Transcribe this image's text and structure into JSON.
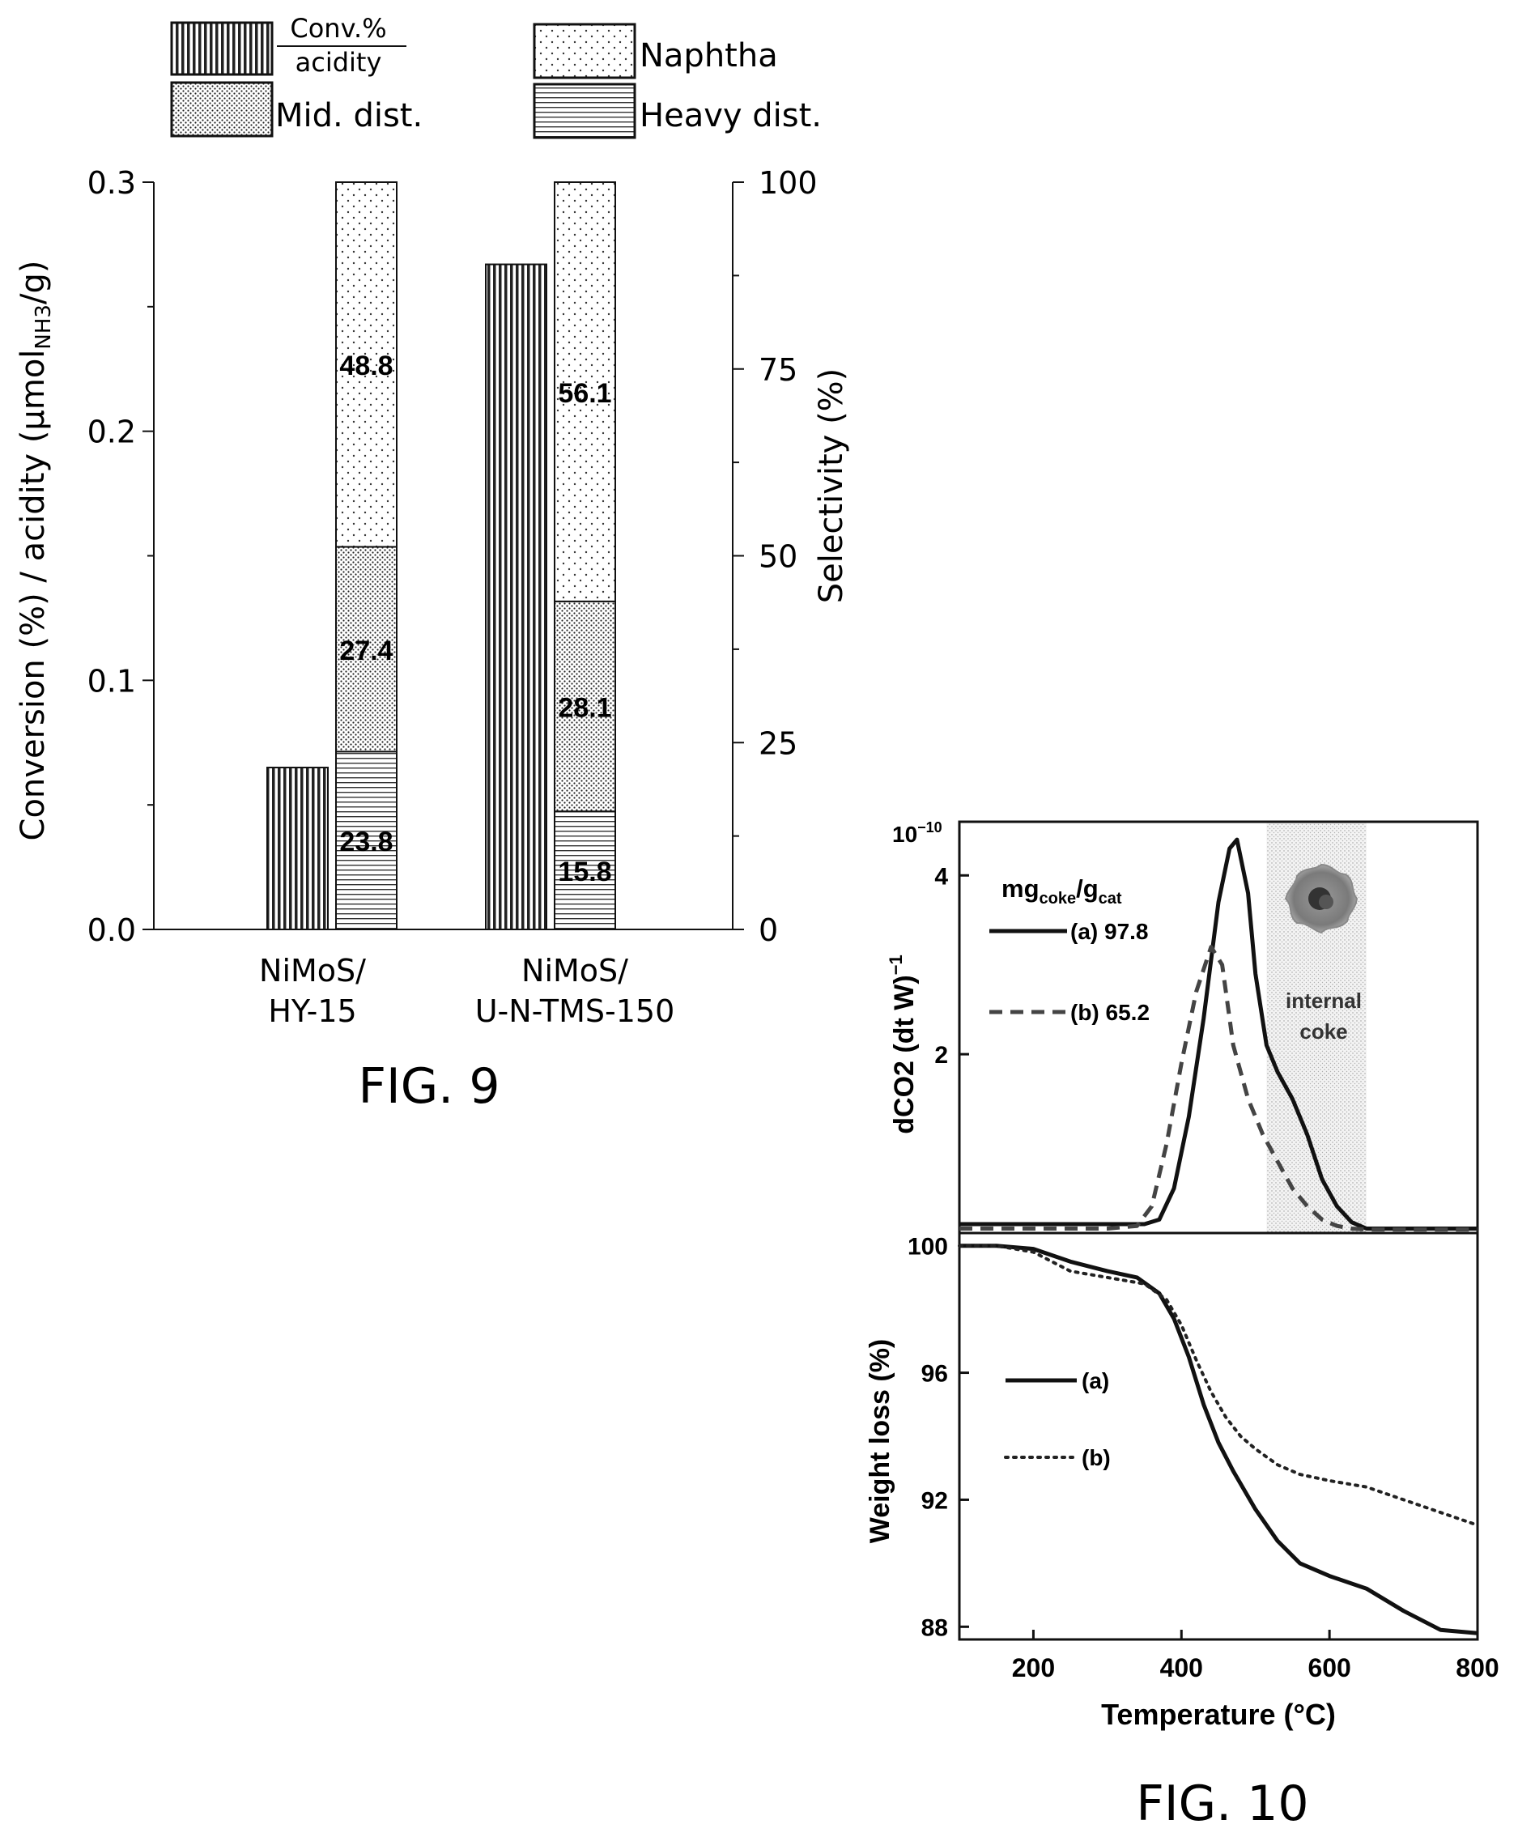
{
  "chart_data": [
    {
      "type": "bar",
      "caption": "FIG. 9",
      "legend": {
        "conv_top": "Conv.%",
        "conv_bottom": "acidity",
        "naphtha": "Naphtha",
        "mid": "Mid. dist.",
        "heavy": "Heavy dist."
      },
      "ylabel_left": "Conversion (%) / acidity (μmol",
      "ylabel_left_sub": "NH3",
      "ylabel_left_end": "/g)",
      "ylabel_right": "Selectivity (%)",
      "ylim_left": [
        0,
        0.3
      ],
      "yticks_left": [
        "0.0",
        "0.1",
        "0.2",
        "0.3"
      ],
      "ylim_right": [
        0,
        100
      ],
      "yticks_right": [
        "0",
        "25",
        "50",
        "75",
        "100"
      ],
      "categories": [
        {
          "line1": "NiMoS/",
          "line2": "HY-15"
        },
        {
          "line1": "NiMoS/",
          "line2": "U-N-TMS-150"
        }
      ],
      "conversion_per_acidity": [
        0.065,
        0.267
      ],
      "selectivity": {
        "heavy": [
          23.8,
          15.8
        ],
        "mid": [
          27.4,
          28.1
        ],
        "naphtha": [
          48.8,
          56.1
        ]
      },
      "labels": {
        "heavy": [
          "23.8",
          "15.8"
        ],
        "mid": [
          "27.4",
          "28.1"
        ],
        "naphtha": [
          "48.8",
          "56.1"
        ]
      }
    },
    {
      "type": "line",
      "caption": "FIG. 10",
      "top_panel": {
        "ylabel": "dCO2 (dt W)",
        "ylabel_sup": "−1",
        "scale_label": "10",
        "scale_exp": "−10",
        "yticks": [
          "2",
          "4"
        ],
        "ylim": [
          0,
          4.6
        ],
        "legend_title": "mg",
        "legend_title_sub1": "coke",
        "legend_title_mid": "/g",
        "legend_title_sub2": "cat",
        "annotation": [
          "internal",
          "coke"
        ],
        "shade_range": [
          515,
          650
        ],
        "series": [
          {
            "name": "(a) 97.8",
            "style": "solid",
            "x": [
              100,
              200,
              300,
              350,
              370,
              390,
              410,
              430,
              450,
              465,
              475,
              490,
              500,
              515,
              530,
              550,
              570,
              590,
              610,
              630,
              650,
              700,
              800
            ],
            "y": [
              0.1,
              0.1,
              0.1,
              0.1,
              0.15,
              0.5,
              1.3,
              2.4,
              3.7,
              4.3,
              4.4,
              3.8,
              2.9,
              2.1,
              1.8,
              1.5,
              1.1,
              0.6,
              0.3,
              0.12,
              0.05,
              0.05,
              0.05
            ]
          },
          {
            "name": "(b) 65.2",
            "style": "dashed",
            "x": [
              100,
              200,
              300,
              340,
              360,
              380,
              400,
              420,
              440,
              455,
              470,
              490,
              510,
              530,
              550,
              570,
              590,
              610,
              630,
              650,
              700,
              800
            ],
            "y": [
              0.05,
              0.05,
              0.05,
              0.08,
              0.3,
              1.0,
              1.9,
              2.7,
              3.2,
              3.0,
              2.1,
              1.5,
              1.1,
              0.8,
              0.5,
              0.3,
              0.15,
              0.08,
              0.05,
              0.04,
              0.04,
              0.04
            ]
          }
        ]
      },
      "bottom_panel": {
        "ylabel": "Weight loss (%)",
        "yticks": [
          "88",
          "92",
          "96",
          "100"
        ],
        "ylim": [
          87.6,
          100.4
        ],
        "series": [
          {
            "name": "(a)",
            "style": "solid",
            "x": [
              100,
              150,
              200,
              250,
              300,
              340,
              370,
              390,
              410,
              430,
              450,
              470,
              500,
              530,
              560,
              600,
              650,
              700,
              750,
              800
            ],
            "y": [
              100,
              100,
              99.9,
              99.5,
              99.2,
              99.0,
              98.5,
              97.7,
              96.5,
              95.0,
              93.8,
              92.9,
              91.7,
              90.7,
              90.0,
              89.6,
              89.2,
              88.5,
              87.9,
              87.8
            ]
          },
          {
            "name": "(b)",
            "style": "dotted",
            "x": [
              100,
              150,
              200,
              250,
              300,
              350,
              380,
              400,
              420,
              440,
              460,
              480,
              500,
              530,
              560,
              600,
              650,
              700,
              750,
              800
            ],
            "y": [
              100,
              100,
              99.8,
              99.2,
              99.0,
              98.8,
              98.3,
              97.5,
              96.4,
              95.4,
              94.6,
              94.0,
              93.6,
              93.1,
              92.8,
              92.6,
              92.4,
              92.0,
              91.6,
              91.2
            ]
          }
        ]
      },
      "xlabel": "Temperature (°C)",
      "xlim": [
        100,
        800
      ],
      "xticks": [
        "200",
        "400",
        "600",
        "800"
      ]
    }
  ]
}
